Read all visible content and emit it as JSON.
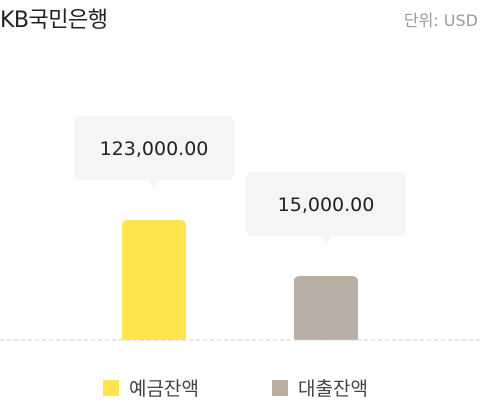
{
  "header": {
    "title": "KB국민은행",
    "unit": "단위: USD"
  },
  "colors": {
    "deposit": "#FFE44D",
    "loan": "#B8AEA4",
    "bubble": "#F5F5F5",
    "baseline": "#D0D0D0"
  },
  "chart_data": {
    "type": "bar",
    "title": "",
    "unit": "USD",
    "categories": [
      "예금잔액",
      "대출잔액"
    ],
    "values": [
      123000,
      15000
    ],
    "data_labels": [
      "123,000.00",
      "15,000.00"
    ],
    "legend": [
      "예금잔액",
      "대출잔액"
    ],
    "legend_position": "bottom",
    "grid": false
  }
}
